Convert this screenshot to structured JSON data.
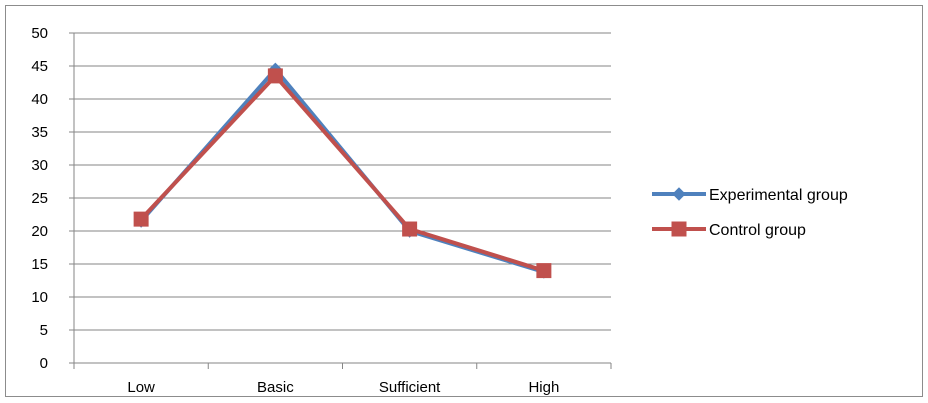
{
  "chart_data": {
    "type": "line",
    "categories": [
      "Low",
      "Basic",
      "Sufficient",
      "High"
    ],
    "series": [
      {
        "name": "Experimental group",
        "values": [
          21.5,
          44.5,
          20.0,
          13.8
        ],
        "color": "#4f81bd",
        "marker": "diamond"
      },
      {
        "name": "Control group",
        "values": [
          21.8,
          43.5,
          20.3,
          14.0
        ],
        "color": "#c0504d",
        "marker": "square"
      }
    ],
    "yticks": [
      "0",
      "5",
      "10",
      "15",
      "20",
      "25",
      "30",
      "35",
      "40",
      "45",
      "50"
    ],
    "ylim": [
      0,
      50
    ],
    "grid": true,
    "legend_position": "right"
  }
}
